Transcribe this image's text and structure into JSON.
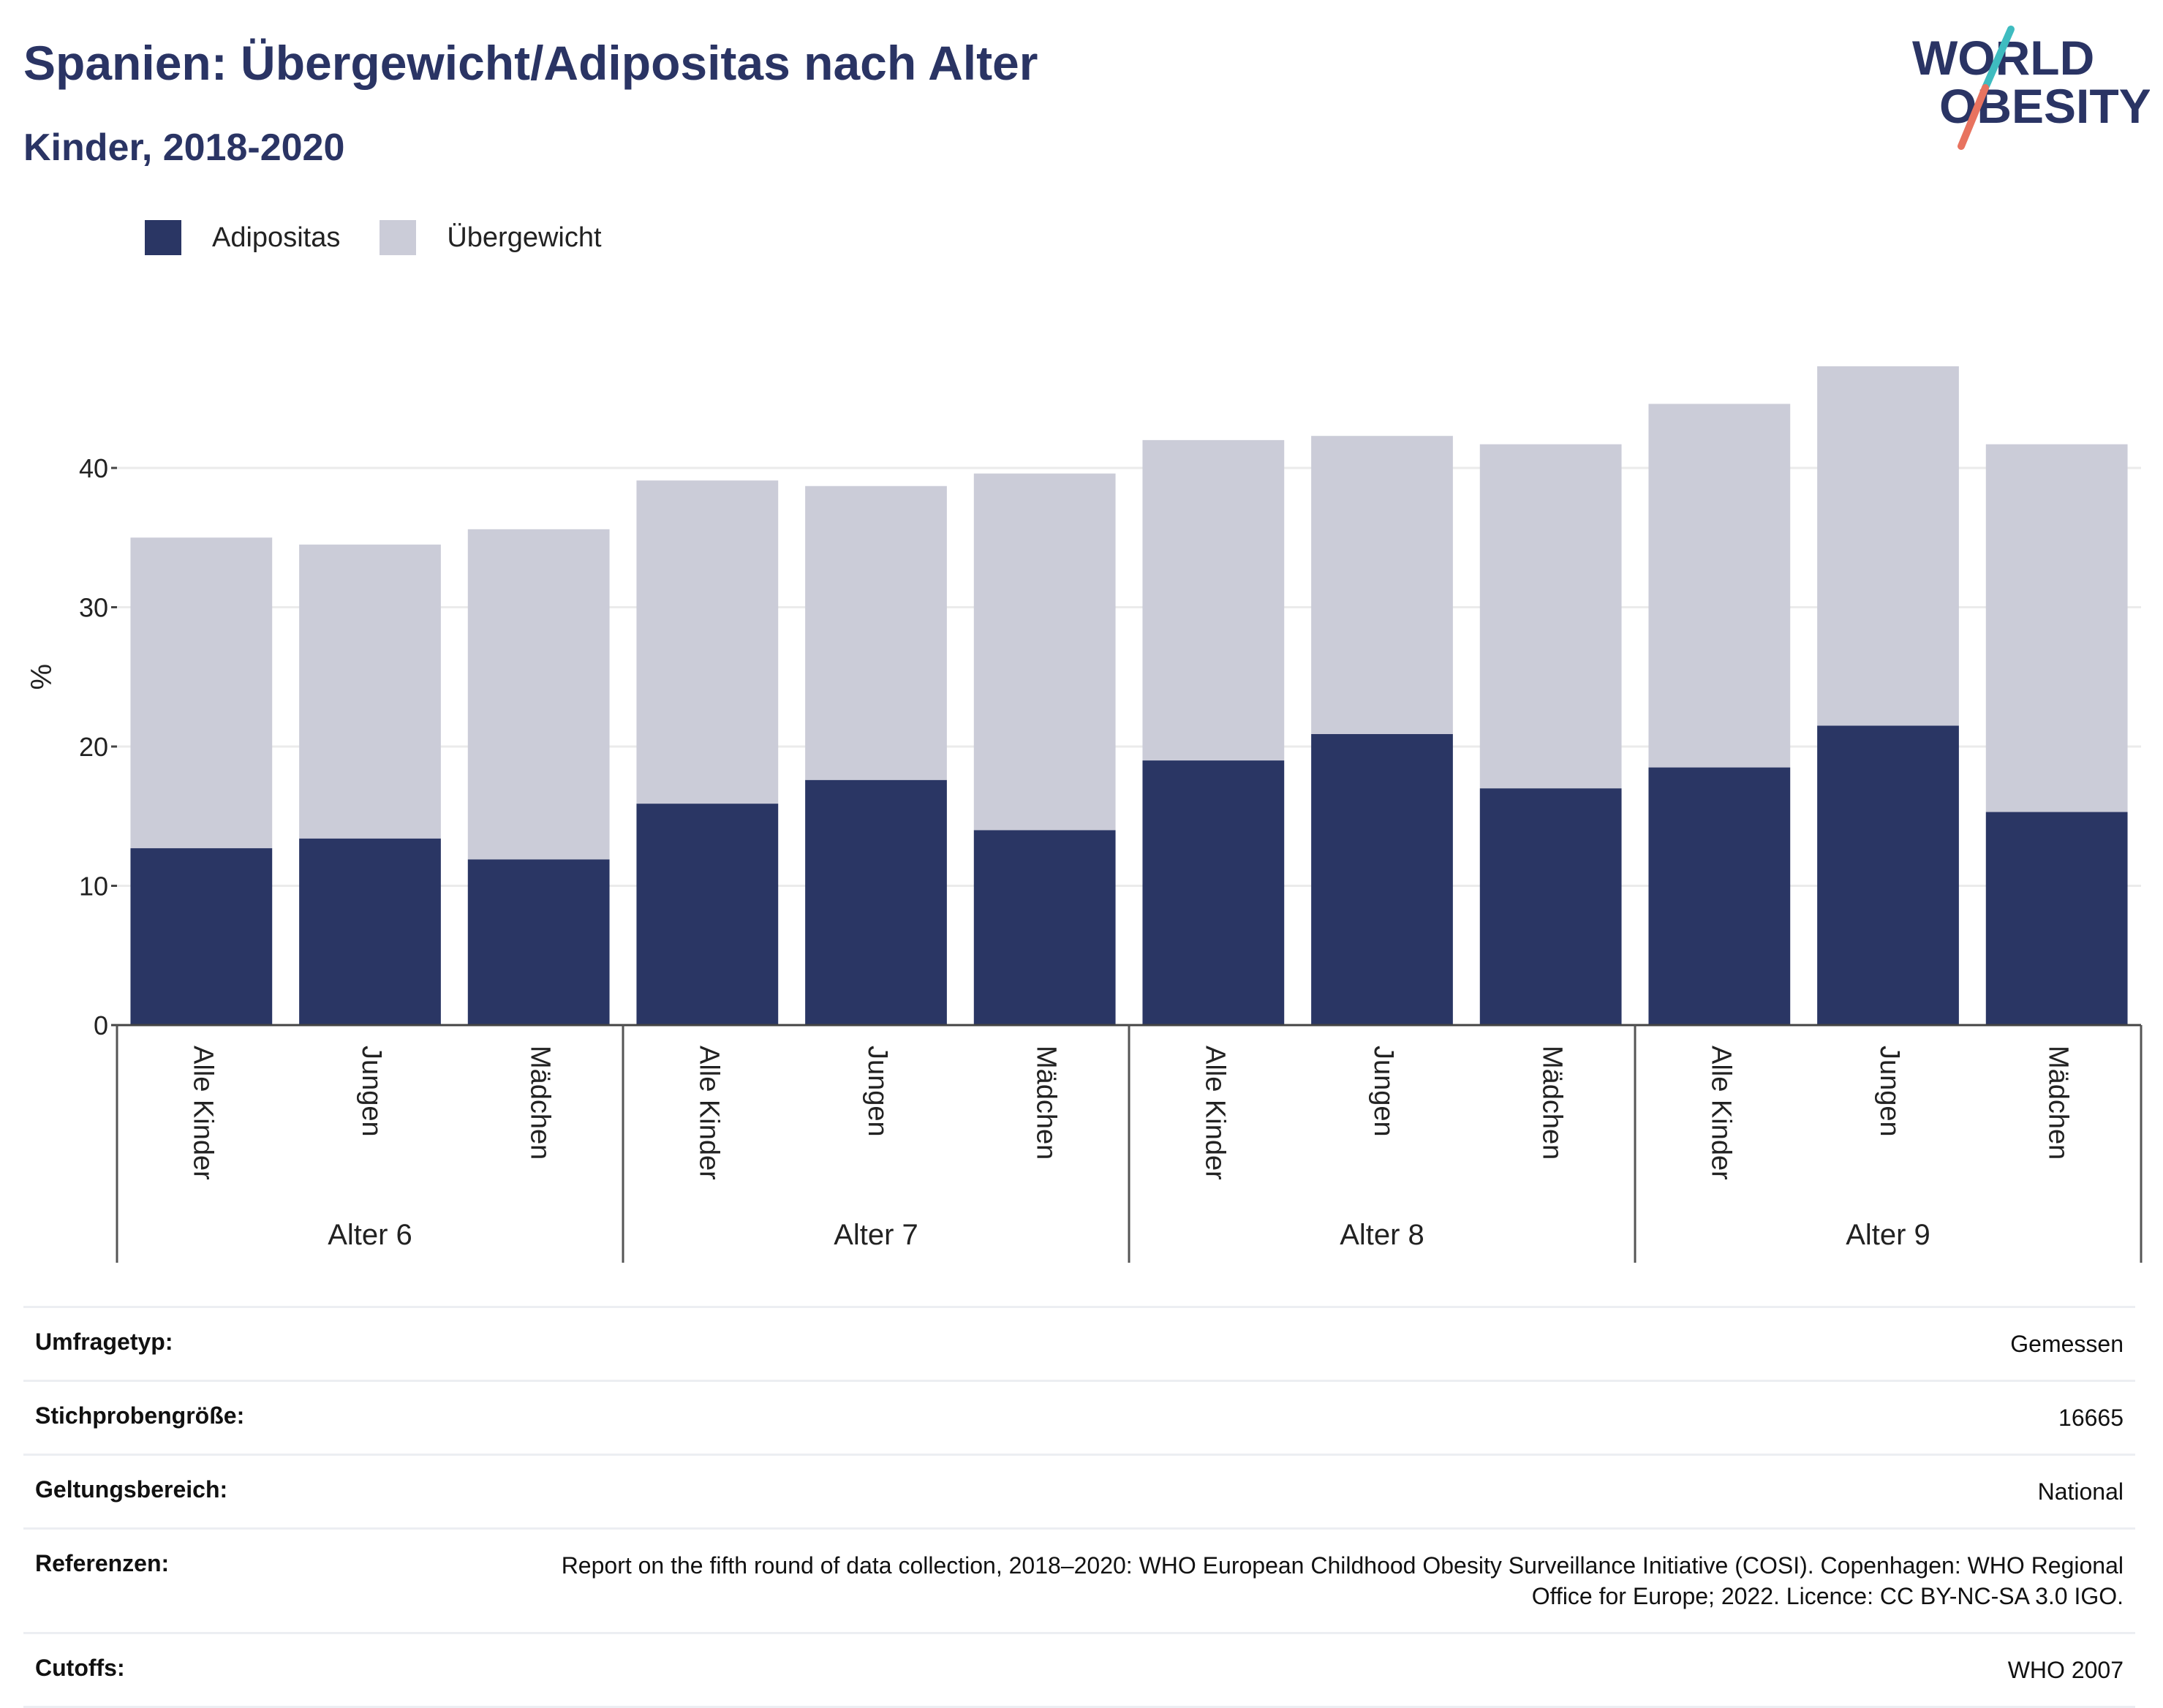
{
  "header": {
    "title": "Spanien: Übergewicht/Adipositas nach Alter",
    "subtitle": "Kinder, 2018-2020"
  },
  "logo": {
    "line1": "WORLD",
    "line2": "OBESITY"
  },
  "colors": {
    "adipositas": "#2a3664",
    "uebergewicht": "#cbccd8",
    "logo_teal": "#3fbcc0",
    "logo_coral": "#e8735f"
  },
  "chart_data": {
    "type": "bar",
    "stacked": true,
    "ylabel": "%",
    "ylim": [
      0,
      50
    ],
    "yticks": [
      0,
      10,
      20,
      30,
      40
    ],
    "grid": true,
    "legend_position": "top-left",
    "groups": [
      {
        "label": "Alter 6",
        "categories": [
          "Alle Kinder",
          "Jungen",
          "Mädchen"
        ]
      },
      {
        "label": "Alter 7",
        "categories": [
          "Alle Kinder",
          "Jungen",
          "Mädchen"
        ]
      },
      {
        "label": "Alter 8",
        "categories": [
          "Alle Kinder",
          "Jungen",
          "Mädchen"
        ]
      },
      {
        "label": "Alter 9",
        "categories": [
          "Alle Kinder",
          "Jungen",
          "Mädchen"
        ]
      }
    ],
    "series": [
      {
        "name": "Adipositas",
        "values": [
          12.7,
          13.4,
          11.9,
          15.9,
          17.6,
          14.0,
          19.0,
          20.9,
          17.0,
          18.5,
          21.5,
          15.3
        ]
      },
      {
        "name": "Übergewicht",
        "values": [
          22.3,
          21.1,
          23.7,
          23.2,
          21.1,
          25.6,
          23.0,
          21.4,
          24.7,
          26.1,
          25.8,
          26.4
        ]
      }
    ]
  },
  "meta": [
    {
      "key": "Umfragetyp:",
      "value": "Gemessen"
    },
    {
      "key": "Stichprobengröße:",
      "value": "16665"
    },
    {
      "key": "Geltungsbereich:",
      "value": "National"
    },
    {
      "key": "Referenzen:",
      "value": "Report on the fifth round of data collection, 2018–2020: WHO European Childhood Obesity Surveillance Initiative (COSI). Copenhagen: WHO Regional Office for Europe; 2022. Licence: CC BY-NC-SA 3.0 IGO."
    },
    {
      "key": "Cutoffs:",
      "value": "WHO 2007"
    }
  ]
}
